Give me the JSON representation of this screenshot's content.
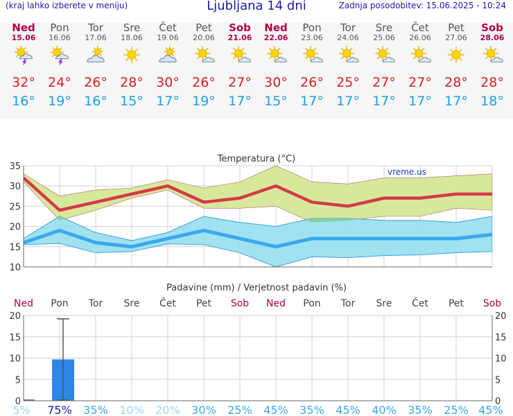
{
  "header": {
    "left_note": "(kraj lahko izberete v meniju)",
    "title": "Ljubljana 14 dni",
    "updated": "Zadnja posodobitev: 15.06.2025 - 10:24"
  },
  "days": [
    {
      "name": "Ned",
      "date": "15.06",
      "weekend": true,
      "icon": "thunderstorm-icon",
      "tmax": "32°",
      "tmin": "16°"
    },
    {
      "name": "Pon",
      "date": "16.06",
      "weekend": false,
      "icon": "thunderstorm-icon",
      "tmax": "24°",
      "tmin": "19°"
    },
    {
      "name": "Tor",
      "date": "17.06",
      "weekend": false,
      "icon": "cloudy-sun-icon",
      "tmax": "26°",
      "tmin": "16°"
    },
    {
      "name": "Sre",
      "date": "18.06",
      "weekend": false,
      "icon": "sun-icon",
      "tmax": "28°",
      "tmin": "15°"
    },
    {
      "name": "Čet",
      "date": "19.06",
      "weekend": false,
      "icon": "cloudy-sun-icon",
      "tmax": "30°",
      "tmin": "17°"
    },
    {
      "name": "Pet",
      "date": "20.06",
      "weekend": false,
      "icon": "partly-sunny-icon",
      "tmax": "26°",
      "tmin": "19°"
    },
    {
      "name": "Sob",
      "date": "21.06",
      "weekend": true,
      "icon": "partly-sunny-icon",
      "tmax": "27°",
      "tmin": "17°"
    },
    {
      "name": "Ned",
      "date": "22.06",
      "weekend": true,
      "icon": "partly-sunny-icon",
      "tmax": "30°",
      "tmin": "15°"
    },
    {
      "name": "Pon",
      "date": "23.06",
      "weekend": false,
      "icon": "partly-sunny-icon",
      "tmax": "26°",
      "tmin": "17°"
    },
    {
      "name": "Tor",
      "date": "24.06",
      "weekend": false,
      "icon": "partly-sunny-icon",
      "tmax": "25°",
      "tmin": "17°"
    },
    {
      "name": "Sre",
      "date": "25.06",
      "weekend": false,
      "icon": "partly-sunny-icon",
      "tmax": "27°",
      "tmin": "17°"
    },
    {
      "name": "Čet",
      "date": "26.06",
      "weekend": false,
      "icon": "partly-sunny-icon",
      "tmax": "27°",
      "tmin": "17°"
    },
    {
      "name": "Pet",
      "date": "27.06",
      "weekend": false,
      "icon": "sun-icon",
      "tmax": "28°",
      "tmin": "17°"
    },
    {
      "name": "Sob",
      "date": "28.06",
      "weekend": true,
      "icon": "partly-sunny-icon",
      "tmax": "28°",
      "tmin": "18°"
    }
  ],
  "colors": {
    "tmax": "#d62020",
    "tmin": "#1aa0e0",
    "weekend": "#b0004a",
    "band_max": "#d8e89a",
    "band_min": "#9be0ee",
    "band_overlap": "#86cf9e",
    "precip_bar": "#2f86e6",
    "grid": "#d0d0d0"
  },
  "chart_data": [
    {
      "type": "line",
      "title": "Temperatura (°C)",
      "watermark": "vreme.us",
      "ylim": [
        10,
        35
      ],
      "yticks": [
        10,
        15,
        20,
        25,
        30,
        35
      ],
      "series": [
        {
          "name": "Max temperature",
          "color": "#d62020",
          "values": [
            32,
            24,
            26,
            28,
            30,
            26,
            27,
            30,
            26,
            25,
            27,
            27,
            28,
            28
          ],
          "upper": [
            33,
            27.5,
            29,
            29.5,
            31.5,
            29.5,
            31,
            35,
            31,
            30.5,
            32,
            32,
            32.5,
            33
          ],
          "lower": [
            31,
            21.5,
            24,
            27,
            29,
            24.5,
            24.5,
            25,
            21,
            21.5,
            22.5,
            22.5,
            24.5,
            24
          ]
        },
        {
          "name": "Min temperature",
          "color": "#1aa0e0",
          "values": [
            16,
            19,
            16,
            15,
            17,
            19,
            17,
            15,
            17,
            17,
            17,
            17,
            17,
            18
          ],
          "upper": [
            17,
            22.5,
            18.5,
            16.5,
            18.5,
            22.5,
            21,
            20,
            22,
            22,
            21.5,
            21.5,
            21,
            22.5
          ],
          "lower": [
            15.5,
            15.8,
            13.5,
            13.8,
            15.7,
            15.5,
            13.5,
            10,
            12.5,
            12.3,
            12.8,
            13,
            13.5,
            13.8
          ]
        }
      ]
    },
    {
      "type": "bar",
      "title": "Padavine (mm) / Verjetnost padavin (%)",
      "categories": [
        "Ned",
        "Pon",
        "Tor",
        "Sre",
        "Čet",
        "Pet",
        "Sob",
        "Ned",
        "Pon",
        "Tor",
        "Sre",
        "Čet",
        "Pet",
        "Sob"
      ],
      "weekend": [
        true,
        false,
        false,
        false,
        false,
        false,
        true,
        true,
        false,
        false,
        false,
        false,
        false,
        true
      ],
      "precip_mm": [
        0.3,
        9.7,
        0,
        0,
        0,
        0,
        0,
        0,
        0,
        0,
        0,
        0,
        0,
        0
      ],
      "error_max": [
        0.3,
        19.2,
        0,
        0,
        0,
        0,
        0,
        0,
        0,
        0,
        0,
        0,
        0,
        0
      ],
      "probability": [
        "5%",
        "75%",
        "35%",
        "10%",
        "20%",
        "30%",
        "25%",
        "45%",
        "35%",
        "45%",
        "40%",
        "35%",
        "25%",
        "45%"
      ],
      "probability_values": [
        5,
        75,
        35,
        10,
        20,
        30,
        25,
        45,
        35,
        45,
        40,
        35,
        25,
        45
      ],
      "ylim": [
        0,
        20
      ],
      "yticks": [
        0,
        5,
        10,
        15,
        20
      ]
    }
  ]
}
